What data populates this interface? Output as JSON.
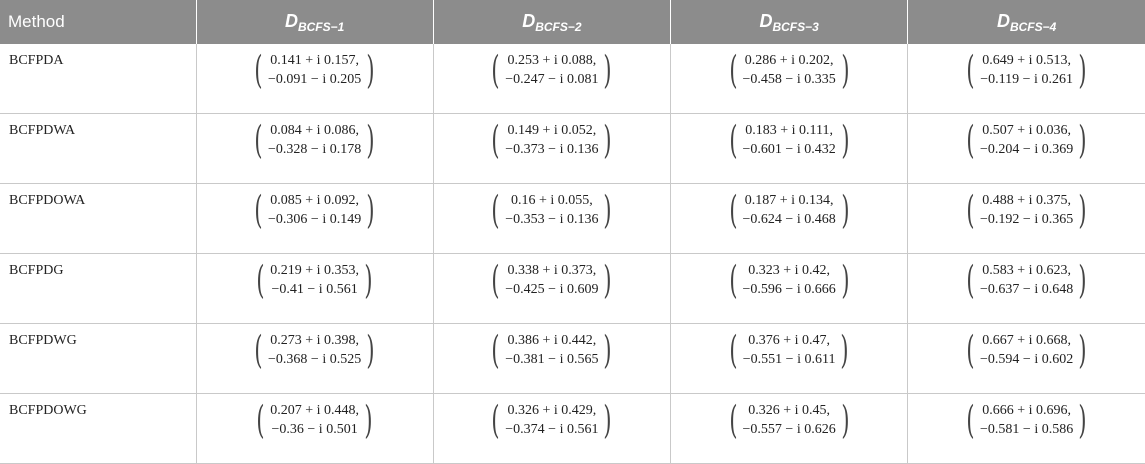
{
  "table": {
    "headers": {
      "method": "Method",
      "columns": [
        {
          "main": "D",
          "sub": "BCFS−1"
        },
        {
          "main": "D",
          "sub": "BCFS−2"
        },
        {
          "main": "D",
          "sub": "BCFS−3"
        },
        {
          "main": "D",
          "sub": "BCFS−4"
        }
      ]
    },
    "rows": [
      {
        "method": "BCFPDA",
        "values": [
          {
            "l1": "0.141 + i 0.157,",
            "l2": "−0.091 − i 0.205"
          },
          {
            "l1": "0.253 + i 0.088,",
            "l2": "−0.247 − i 0.081"
          },
          {
            "l1": "0.286 + i 0.202,",
            "l2": "−0.458 − i 0.335"
          },
          {
            "l1": "0.649 + i 0.513,",
            "l2": "−0.119 − i 0.261"
          }
        ]
      },
      {
        "method": "BCFPDWA",
        "values": [
          {
            "l1": "0.084 + i 0.086,",
            "l2": "−0.328 − i 0.178"
          },
          {
            "l1": "0.149 + i 0.052,",
            "l2": "−0.373 − i 0.136"
          },
          {
            "l1": "0.183 + i 0.111,",
            "l2": "−0.601 − i 0.432"
          },
          {
            "l1": "0.507 + i 0.036,",
            "l2": "−0.204 − i 0.369"
          }
        ]
      },
      {
        "method": "BCFPDOWA",
        "values": [
          {
            "l1": "0.085 + i 0.092,",
            "l2": "−0.306 − i 0.149"
          },
          {
            "l1": "0.16 + i 0.055,",
            "l2": "−0.353 − i 0.136"
          },
          {
            "l1": "0.187 + i 0.134,",
            "l2": "−0.624 − i 0.468"
          },
          {
            "l1": "0.488 + i 0.375,",
            "l2": "−0.192 − i 0.365"
          }
        ]
      },
      {
        "method": "BCFPDG",
        "values": [
          {
            "l1": "0.219 + i 0.353,",
            "l2": "−0.41 − i 0.561"
          },
          {
            "l1": "0.338 + i 0.373,",
            "l2": "−0.425 − i 0.609"
          },
          {
            "l1": "0.323 + i 0.42,",
            "l2": "−0.596 − i 0.666"
          },
          {
            "l1": "0.583 + i 0.623,",
            "l2": "−0.637 − i 0.648"
          }
        ]
      },
      {
        "method": "BCFPDWG",
        "values": [
          {
            "l1": "0.273 + i 0.398,",
            "l2": "−0.368 − i 0.525"
          },
          {
            "l1": "0.386 + i 0.442,",
            "l2": "−0.381 − i 0.565"
          },
          {
            "l1": "0.376 + i 0.47,",
            "l2": "−0.551 − i 0.611"
          },
          {
            "l1": "0.667 + i 0.668,",
            "l2": "−0.594 − i 0.602"
          }
        ]
      },
      {
        "method": "BCFPDOWG",
        "values": [
          {
            "l1": "0.207 + i 0.448,",
            "l2": "−0.36 − i 0.501"
          },
          {
            "l1": "0.326 + i 0.429,",
            "l2": "−0.374 − i 0.561"
          },
          {
            "l1": "0.326 + i 0.45,",
            "l2": "−0.557 − i 0.626"
          },
          {
            "l1": "0.666 + i 0.696,",
            "l2": "−0.581 − i 0.586"
          }
        ]
      }
    ]
  }
}
